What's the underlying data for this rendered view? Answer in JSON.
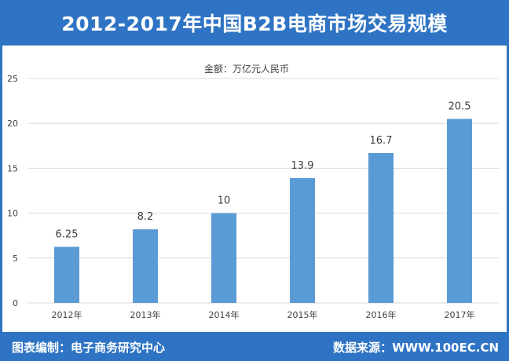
{
  "header": {
    "title": "2012-2017年中国B2B电商市场交易规模"
  },
  "footer": {
    "producer_label": "图表编制：",
    "producer": "电子商务研究中心",
    "source_label": "数据来源：",
    "source": "WWW.100EC.CN"
  },
  "colors": {
    "frame": "#2f74c4",
    "bar": "#5b9bd5",
    "grid": "#d9d9d9"
  },
  "chart_data": {
    "type": "bar",
    "title": "",
    "unit_label": "金额：万亿元人民币",
    "xlabel": "",
    "ylabel": "",
    "categories": [
      "2012年",
      "2013年",
      "2014年",
      "2015年",
      "2016年",
      "2017年"
    ],
    "values": [
      6.25,
      8.2,
      10,
      13.9,
      16.7,
      20.5
    ],
    "data_labels": [
      "6.25",
      "8.2",
      "10",
      "13.9",
      "16.7",
      "20.5"
    ],
    "ylim": [
      0,
      25
    ],
    "yticks": [
      0,
      5,
      10,
      15,
      20,
      25
    ],
    "grid": true,
    "legend": "none"
  }
}
